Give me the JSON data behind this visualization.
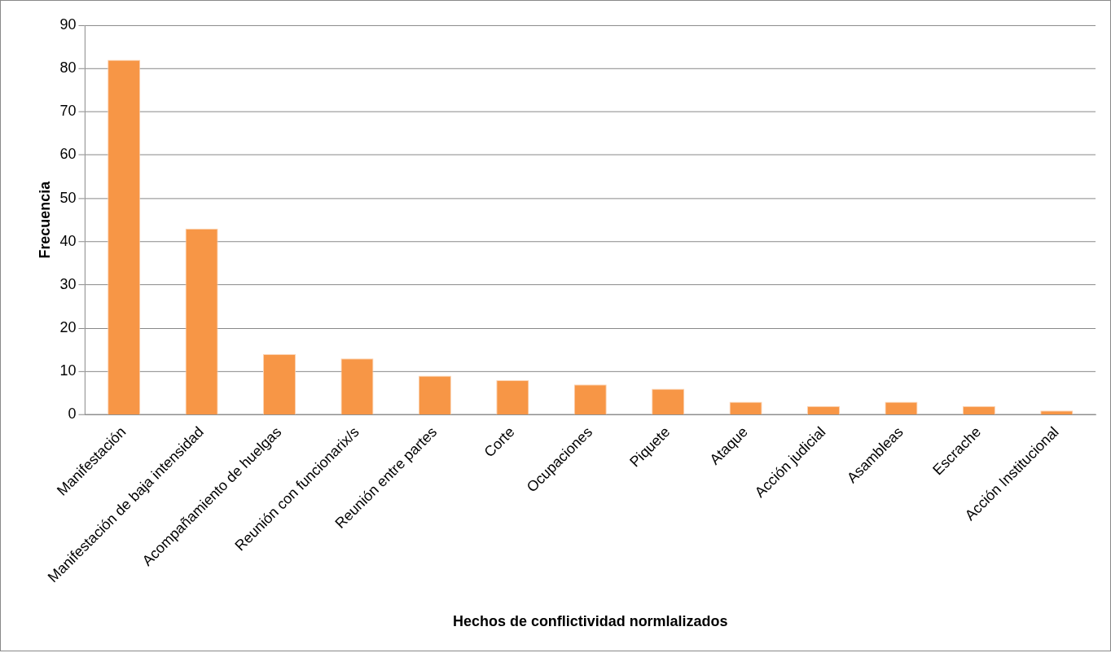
{
  "chart_data": {
    "type": "bar",
    "xlabel": "Hechos de conflictividad normlalizados",
    "ylabel": "Frecuencia",
    "categories": [
      "Manifestación",
      "Manifestación de baja intensidad",
      "Acompañamiento de huelgas",
      "Reunión con funcionarix/s",
      "Reunión entre partes",
      "Corte",
      "Ocupaciones",
      "Piquete",
      "Ataque",
      "Acción judicial",
      "Asambleas",
      "Escrache",
      "Acción Institucional"
    ],
    "values": [
      82,
      43,
      14,
      13,
      9,
      8,
      7,
      6,
      3,
      2,
      3,
      2,
      1
    ],
    "color": "#f79646",
    "ylim": [
      0,
      90
    ],
    "yticks": [
      0,
      10,
      20,
      30,
      40,
      50,
      60,
      70,
      80,
      90
    ],
    "grid": "y",
    "legend": false
  }
}
